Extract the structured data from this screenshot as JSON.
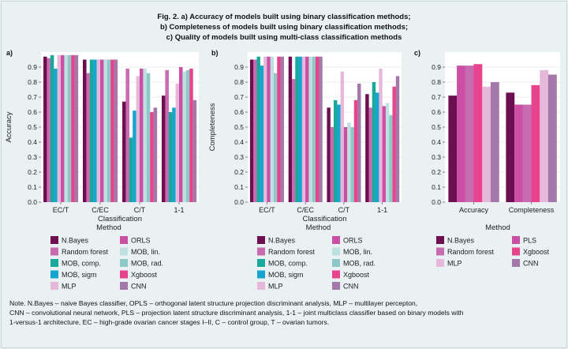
{
  "title_lines": [
    "Fig. 2. a) Accuracy of models built using binary classification methods;",
    "b) Completeness of models built using binary classification methods;",
    "c) Quality of models built using multi-class classification methods"
  ],
  "note_lines": [
    "Note. N.Bayes – naive Bayes classifier, OPLS – orthogonal latent structure projection discriminant analysis, MLP – multilayer percepton,",
    "CNN – convolutional neural network, PLS – projection latent structure discriminant analysis, 1-1 – joint multiclass classifier based on binary models with",
    "1-versus-1 architecture, EC – high-grade ovarian cancer stages I–II, C – control group, T – ovarian tumors."
  ],
  "colors": {
    "N.Bayes": "#6b0f4e",
    "ORLS": "#cc4fa6",
    "Random forest": "#c86bb0",
    "MOB, lin.": "#bfe0e0",
    "MOB, comp.": "#1aa89a",
    "MOB, rad.": "#8fc9c7",
    "MOB, sigm": "#14a6cf",
    "Xgboost": "#e8448e",
    "MLP": "#e6b8da",
    "CNN": "#a478a8",
    "PLS": "#cc4fa6"
  },
  "chart_data": [
    {
      "panel": "a)",
      "type": "bar",
      "xlabel": "Classification",
      "ylabel": "Accuracy",
      "ylim": [
        0,
        1
      ],
      "yticks": [
        "0.0",
        "0.1",
        "0.2",
        "0.3",
        "0.4",
        "0.5",
        "0.6",
        "0.7",
        "0.8",
        "0.9"
      ],
      "categories": [
        "EC/T",
        "C/EC",
        "C/T",
        "1-1"
      ],
      "series": [
        {
          "name": "N.Bayes",
          "values": [
            0.97,
            0.95,
            0.67,
            0.71
          ]
        },
        {
          "name": "Random forest",
          "values": [
            0.96,
            0.86,
            0.89,
            0.88
          ]
        },
        {
          "name": "MOB, comp.",
          "values": [
            0.98,
            0.95,
            0.43,
            0.6
          ]
        },
        {
          "name": "MOB, sigm",
          "values": [
            0.89,
            0.95,
            0.61,
            0.63
          ]
        },
        {
          "name": "MLP",
          "values": [
            0.98,
            0.95,
            0.84,
            0.79
          ]
        },
        {
          "name": "ORLS",
          "values": [
            0.98,
            0.95,
            0.89,
            0.9
          ]
        },
        {
          "name": "MOB, lin.",
          "values": [
            0.98,
            0.95,
            0.89,
            0.87
          ]
        },
        {
          "name": "MOB, rad.",
          "values": [
            0.98,
            0.95,
            0.86,
            0.88
          ]
        },
        {
          "name": "Xgboost",
          "values": [
            0.98,
            0.95,
            0.6,
            0.89
          ]
        },
        {
          "name": "CNN",
          "values": [
            0.98,
            0.95,
            0.63,
            0.68
          ]
        }
      ],
      "legend_title": "Method",
      "legend": [
        "N.Bayes",
        "ORLS",
        "Random forest",
        "MOB, lin.",
        "MOB, comp.",
        "MOB, rad.",
        "MOB, sigm",
        "Xgboost",
        "MLP",
        "CNN"
      ]
    },
    {
      "panel": "b)",
      "type": "bar",
      "xlabel": "Classification",
      "ylabel": "Completeness",
      "ylim": [
        0,
        1
      ],
      "yticks": [
        "0.0",
        "0.1",
        "0.2",
        "0.3",
        "0.4",
        "0.5",
        "0.6",
        "0.7",
        "0.8",
        "0.9"
      ],
      "categories": [
        "EC/T",
        "C/EC",
        "C/T",
        "1-1"
      ],
      "series": [
        {
          "name": "N.Bayes",
          "values": [
            0.95,
            0.97,
            0.63,
            0.72
          ]
        },
        {
          "name": "Random forest",
          "values": [
            0.95,
            0.82,
            0.5,
            0.63
          ]
        },
        {
          "name": "MOB, comp.",
          "values": [
            0.97,
            0.97,
            0.68,
            0.8
          ]
        },
        {
          "name": "MOB, sigm",
          "values": [
            0.91,
            0.97,
            0.65,
            0.73
          ]
        },
        {
          "name": "MLP",
          "values": [
            0.97,
            0.97,
            0.87,
            0.89
          ]
        },
        {
          "name": "ORLS",
          "values": [
            0.97,
            0.97,
            0.5,
            0.64
          ]
        },
        {
          "name": "MOB, lin.",
          "values": [
            0.97,
            0.97,
            0.53,
            0.66
          ]
        },
        {
          "name": "MOB, rad.",
          "values": [
            0.86,
            0.97,
            0.5,
            0.58
          ]
        },
        {
          "name": "Xgboost",
          "values": [
            0.97,
            0.97,
            0.68,
            0.77
          ]
        },
        {
          "name": "CNN",
          "values": [
            0.97,
            0.97,
            0.79,
            0.84
          ]
        }
      ],
      "legend_title": "Method",
      "legend": [
        "N.Bayes",
        "ORLS",
        "Random forest",
        "MOB, lin.",
        "MOB, comp.",
        "MOB, rad.",
        "MOB, sigm",
        "Xgboost",
        "MLP",
        "CNN"
      ]
    },
    {
      "panel": "c)",
      "type": "bar",
      "xlabel": "",
      "ylabel": "",
      "ylim": [
        0,
        1
      ],
      "yticks": [
        "0.0",
        "0.1",
        "0.2",
        "0.3",
        "0.4",
        "0.5",
        "0.6",
        "0.7",
        "0.8",
        "0.9"
      ],
      "categories": [
        "Accuracy",
        "Completeness"
      ],
      "series": [
        {
          "name": "N.Bayes",
          "values": [
            0.71,
            0.73
          ]
        },
        {
          "name": "PLS",
          "values": [
            0.91,
            0.65
          ]
        },
        {
          "name": "Random forest",
          "values": [
            0.91,
            0.65
          ]
        },
        {
          "name": "Xgboost",
          "values": [
            0.92,
            0.78
          ]
        },
        {
          "name": "MLP",
          "values": [
            0.77,
            0.88
          ]
        },
        {
          "name": "CNN",
          "values": [
            0.8,
            0.85
          ]
        }
      ],
      "legend_title": "Method",
      "legend": [
        "N.Bayes",
        "PLS",
        "Random forest",
        "Xgboost",
        "MLP",
        "CNN"
      ]
    }
  ]
}
